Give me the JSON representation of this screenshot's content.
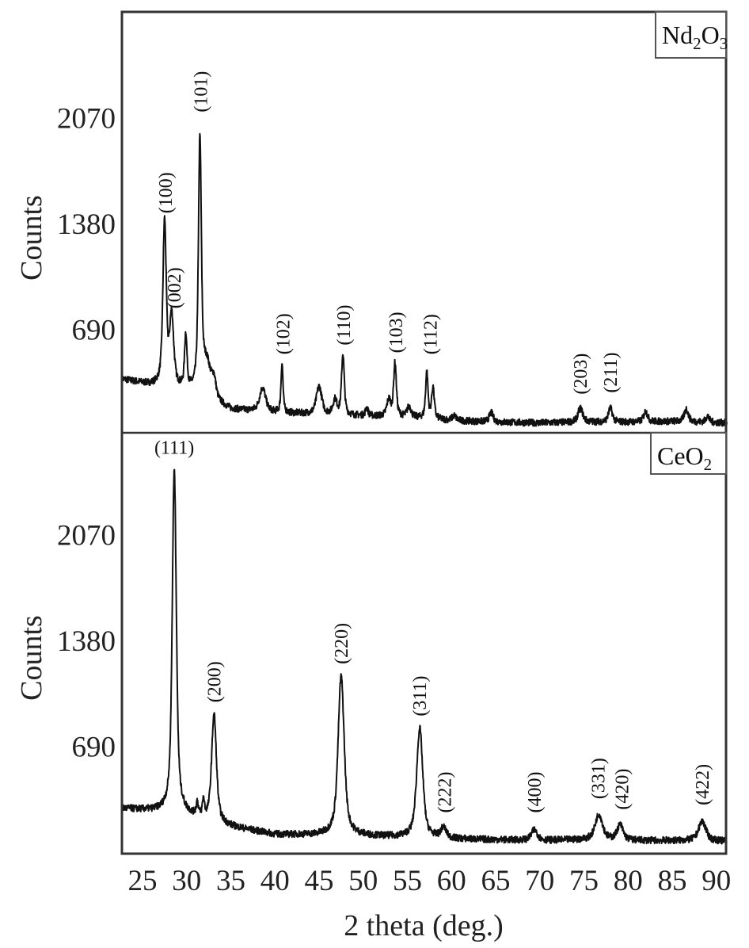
{
  "chart_data": [
    {
      "type": "line",
      "panel": "top",
      "legend": "Nd2O3",
      "legend_parts": [
        {
          "t": "Nd",
          "sub": false
        },
        {
          "t": "2",
          "sub": true
        },
        {
          "t": "O",
          "sub": false
        },
        {
          "t": "3",
          "sub": true
        }
      ],
      "xlabel": "2 theta (deg.)",
      "ylabel": "Counts",
      "xlim": [
        22.7,
        91.2
      ],
      "ylim": [
        0,
        2750
      ],
      "yticks": [
        690,
        1380,
        2070
      ],
      "xticks": [
        25,
        30,
        35,
        40,
        45,
        50,
        55,
        60,
        65,
        70,
        75,
        80,
        85,
        90
      ],
      "grid": false,
      "baseline": [
        [
          22.7,
          370
        ],
        [
          26,
          330
        ],
        [
          30,
          290
        ],
        [
          35,
          170
        ],
        [
          40,
          150
        ],
        [
          45,
          140
        ],
        [
          50,
          130
        ],
        [
          55,
          120
        ],
        [
          60,
          100
        ],
        [
          65,
          90
        ],
        [
          70,
          85
        ],
        [
          75,
          90
        ],
        [
          80,
          90
        ],
        [
          85,
          95
        ],
        [
          91.2,
          85
        ]
      ],
      "peaks": [
        {
          "x": 27.5,
          "counts": 1385,
          "w": 0.25,
          "label": "(100)",
          "label_x": 27.6,
          "label_y": 1420
        },
        {
          "x": 28.3,
          "counts": 760,
          "w": 0.3,
          "label": "(002)",
          "label_x": 28.6,
          "label_y": 800
        },
        {
          "x": 29.9,
          "counts": 640,
          "w": 0.18,
          "label": null
        },
        {
          "x": 31.5,
          "counts": 1890,
          "w": 0.22,
          "label": "(101)",
          "label_x": 31.6,
          "label_y": 2080
        },
        {
          "x": 32.3,
          "counts": 450,
          "w": 0.6,
          "label": null
        },
        {
          "x": 33.1,
          "counts": 330,
          "w": 0.3,
          "label": null
        },
        {
          "x": 38.6,
          "counts": 310,
          "w": 0.45,
          "label": null
        },
        {
          "x": 40.8,
          "counts": 470,
          "w": 0.15,
          "label": "(102)",
          "label_x": 40.9,
          "label_y": 500
        },
        {
          "x": 45.0,
          "counts": 320,
          "w": 0.4,
          "label": null
        },
        {
          "x": 46.8,
          "counts": 230,
          "w": 0.3,
          "label": null
        },
        {
          "x": 47.7,
          "counts": 530,
          "w": 0.2,
          "label": "(110)",
          "label_x": 47.8,
          "label_y": 560
        },
        {
          "x": 50.4,
          "counts": 180,
          "w": 0.2,
          "label": null
        },
        {
          "x": 52.9,
          "counts": 230,
          "w": 0.3,
          "label": null
        },
        {
          "x": 53.6,
          "counts": 470,
          "w": 0.2,
          "label": "(103)",
          "label_x": 53.7,
          "label_y": 510
        },
        {
          "x": 55.2,
          "counts": 190,
          "w": 0.3,
          "label": null
        },
        {
          "x": 57.2,
          "counts": 410,
          "w": 0.18,
          "label": "(112)",
          "label_x": 57.6,
          "label_y": 500
        },
        {
          "x": 57.9,
          "counts": 310,
          "w": 0.2,
          "label": null
        },
        {
          "x": 60.3,
          "counts": 130,
          "w": 0.3,
          "label": null
        },
        {
          "x": 64.5,
          "counts": 150,
          "w": 0.3,
          "label": null
        },
        {
          "x": 74.6,
          "counts": 180,
          "w": 0.35,
          "label": "(203)",
          "label_x": 74.6,
          "label_y": 240
        },
        {
          "x": 78.0,
          "counts": 180,
          "w": 0.3,
          "label": "(211)",
          "label_x": 78.0,
          "label_y": 250
        },
        {
          "x": 82.0,
          "counts": 160,
          "w": 0.3,
          "label": null
        },
        {
          "x": 86.6,
          "counts": 175,
          "w": 0.3,
          "label": null
        },
        {
          "x": 89.0,
          "counts": 130,
          "w": 0.25,
          "label": null
        }
      ]
    },
    {
      "type": "line",
      "panel": "bottom",
      "legend": "CeO2",
      "legend_parts": [
        {
          "t": "CeO",
          "sub": false
        },
        {
          "t": "2",
          "sub": true
        }
      ],
      "xlabel": "2 theta (deg.)",
      "ylabel": "Counts",
      "xlim": [
        22.7,
        91.2
      ],
      "ylim": [
        0,
        2750
      ],
      "yticks": [
        690,
        1380,
        2070
      ],
      "xticks": [
        25,
        30,
        35,
        40,
        45,
        50,
        55,
        60,
        65,
        70,
        75,
        80,
        85,
        90
      ],
      "grid": false,
      "baseline": [
        [
          22.7,
          290
        ],
        [
          27,
          270
        ],
        [
          29,
          260
        ],
        [
          31,
          230
        ],
        [
          35,
          170
        ],
        [
          40,
          120
        ],
        [
          45,
          115
        ],
        [
          50,
          110
        ],
        [
          55,
          100
        ],
        [
          60,
          90
        ],
        [
          65,
          85
        ],
        [
          70,
          80
        ],
        [
          75,
          85
        ],
        [
          80,
          80
        ],
        [
          85,
          80
        ],
        [
          91.2,
          75
        ]
      ],
      "peaks": [
        {
          "x": 28.6,
          "counts": 2495,
          "w": 0.3,
          "label": "(111)",
          "label_x": 28.6,
          "label_y": 2560,
          "horizontal": true
        },
        {
          "x": 31.2,
          "counts": 310,
          "w": 0.15,
          "label": null
        },
        {
          "x": 31.9,
          "counts": 320,
          "w": 0.15,
          "label": null
        },
        {
          "x": 33.1,
          "counts": 900,
          "w": 0.35,
          "label": "(200)",
          "label_x": 33.1,
          "label_y": 950
        },
        {
          "x": 47.5,
          "counts": 1150,
          "w": 0.45,
          "label": "(220)",
          "label_x": 47.5,
          "label_y": 1200
        },
        {
          "x": 56.4,
          "counts": 810,
          "w": 0.45,
          "label": "(311)",
          "label_x": 56.4,
          "label_y": 860
        },
        {
          "x": 59.1,
          "counts": 160,
          "w": 0.4,
          "label": "(222)",
          "label_x": 59.2,
          "label_y": 230
        },
        {
          "x": 69.4,
          "counts": 150,
          "w": 0.45,
          "label": "(400)",
          "label_x": 69.4,
          "label_y": 230
        },
        {
          "x": 76.7,
          "counts": 250,
          "w": 0.55,
          "label": "(331)",
          "label_x": 76.6,
          "label_y": 320
        },
        {
          "x": 79.1,
          "counts": 180,
          "w": 0.45,
          "label": "(420)",
          "label_x": 79.3,
          "label_y": 250
        },
        {
          "x": 88.4,
          "counts": 205,
          "w": 0.55,
          "label": "(422)",
          "label_x": 88.4,
          "label_y": 280
        }
      ]
    }
  ],
  "axes": {
    "ylabel": "Counts",
    "xlabel": "2 theta (deg.)",
    "ytick_labels": [
      "690",
      "1380",
      "2070"
    ],
    "xtick_labels": [
      "25",
      "30",
      "35",
      "40",
      "45",
      "50",
      "55",
      "60",
      "65",
      "70",
      "75",
      "80",
      "85",
      "90"
    ]
  },
  "colors": {
    "trace": "#111111",
    "frame": "#333333",
    "text": "#222222"
  }
}
